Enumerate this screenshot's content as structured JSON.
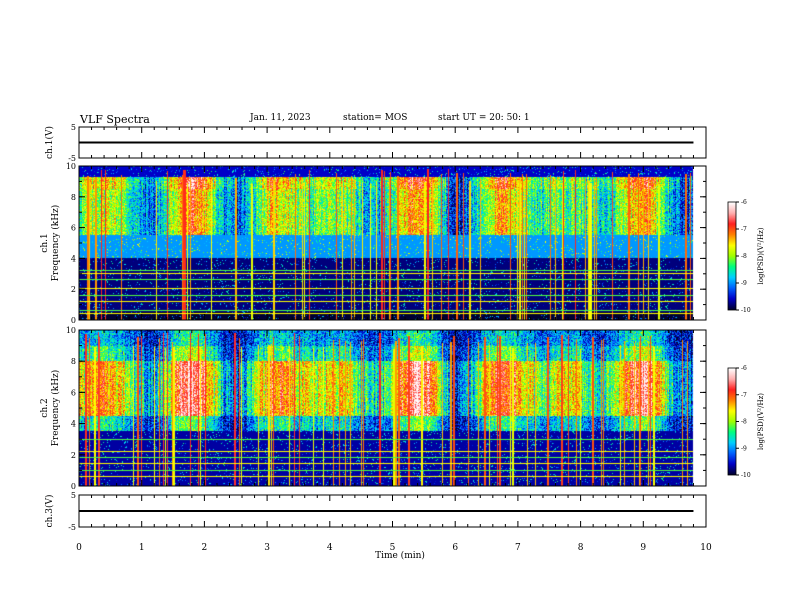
{
  "header": {
    "title": "VLF Spectra",
    "date": "Jan. 11, 2023",
    "station": "station= MOS",
    "start": "start  UT =   20: 50: 1"
  },
  "colors": {
    "spectrogram_scale": [
      "#000030",
      "#0000c8",
      "#0060ff",
      "#00d0ff",
      "#00ff80",
      "#a0ff00",
      "#ffff00",
      "#ff8000",
      "#ff2020",
      "#ffb0b0",
      "#ffffff"
    ]
  },
  "chart_data": [
    {
      "type": "line",
      "name": "ch1-voltage",
      "ylabel": "ch.1(V)",
      "ylim": [
        -5,
        5
      ],
      "y_ticks": [
        "5",
        "-5"
      ],
      "x": [
        0,
        9.8
      ],
      "y": [
        0,
        0
      ]
    },
    {
      "type": "heatmap",
      "name": "ch1-spectrogram",
      "ylabel": "ch.1\nFrequency (kHz)",
      "ylim": [
        0,
        10
      ],
      "y_ticks": [
        "0",
        "2",
        "4",
        "6",
        "8",
        "10"
      ],
      "xlim": [
        0,
        10
      ],
      "data_xlim": [
        0,
        9.8
      ],
      "colorbar": {
        "label": "log(PSD)(V²/Hz)",
        "ticks": [
          "-6",
          "-7",
          "-8",
          "-9",
          "-10"
        ],
        "range": [
          -10,
          -6
        ]
      },
      "bands": [
        {
          "f": [
            0.5,
            4.0
          ],
          "level": -9.8
        },
        {
          "f": [
            4.0,
            5.5
          ],
          "level": -9.0
        },
        {
          "f": [
            5.5,
            8.5
          ],
          "level": -7.6
        },
        {
          "f": [
            8.5,
            9.3
          ],
          "level": -7.2
        },
        {
          "f": [
            9.3,
            10.0
          ],
          "level": -9.6
        }
      ],
      "lines_kHz": [
        0.4,
        0.6,
        1.2,
        1.6,
        2.0,
        2.6,
        3.0,
        3.2
      ]
    },
    {
      "type": "heatmap",
      "name": "ch2-spectrogram",
      "ylabel": "ch.2\nFrequency (kHz)",
      "ylim": [
        0,
        10
      ],
      "y_ticks": [
        "0",
        "2",
        "4",
        "6",
        "8",
        "10"
      ],
      "xlim": [
        0,
        10
      ],
      "data_xlim": [
        0,
        9.8
      ],
      "colorbar": {
        "label": "log(PSD)(V²/Hz)",
        "ticks": [
          "-6",
          "-7",
          "-8",
          "-9",
          "-10"
        ],
        "range": [
          -10,
          -6
        ]
      },
      "bands": [
        {
          "f": [
            0.0,
            3.5
          ],
          "level": -9.7
        },
        {
          "f": [
            3.5,
            4.5
          ],
          "level": -8.4
        },
        {
          "f": [
            4.5,
            8.0
          ],
          "level": -7.0
        },
        {
          "f": [
            8.0,
            9.0
          ],
          "level": -8.2
        },
        {
          "f": [
            9.0,
            10.0
          ],
          "level": -8.7
        }
      ],
      "lines_kHz": [
        0.6,
        1.0,
        1.4,
        1.8,
        2.2,
        3.0
      ]
    },
    {
      "type": "line",
      "name": "ch3-voltage",
      "ylabel": "ch.3(V)",
      "ylim": [
        -5,
        5
      ],
      "y_ticks": [
        "5",
        "-5"
      ],
      "x": [
        0,
        9.8
      ],
      "y": [
        0,
        0
      ]
    }
  ],
  "x_axis": {
    "label": "Time (min)",
    "ticks": [
      "0",
      "1",
      "2",
      "3",
      "4",
      "5",
      "6",
      "7",
      "8",
      "9",
      "10"
    ],
    "range": [
      0,
      10
    ]
  }
}
